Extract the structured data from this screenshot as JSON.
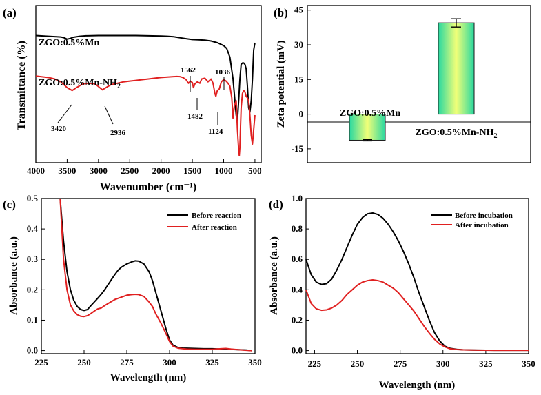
{
  "figure": {
    "colors": {
      "black": "#000000",
      "red": "#e02020",
      "bar_edge": "#1a1a1a"
    }
  },
  "panels": [
    {
      "id": "a",
      "label": "(a)",
      "chart_data": {
        "type": "line",
        "title": "",
        "xlabel": "Wavenumber (cm⁻¹)",
        "ylabel": "Transmittance (%)",
        "xlim": [
          4000,
          400
        ],
        "xticks": [
          "4000",
          "3500",
          "3000",
          "2500",
          "2000",
          "1500",
          "1000",
          "500"
        ],
        "series": [
          {
            "name": "ZGO:0.5%Mn",
            "label": "ZGO:0.5%Mn",
            "color": "#000000",
            "x": [
              4000,
              3800,
              3600,
              3550,
              3500,
              3450,
              3400,
              3300,
              3200,
              3000,
              2800,
              2600,
              2400,
              2200,
              2000,
              1900,
              1800,
              1700,
              1600,
              1500,
              1400,
              1300,
              1200,
              1100,
              1000,
              950,
              900,
              850,
              800,
              780,
              760,
              740,
              720,
              700,
              680,
              660,
              640,
              620,
              600,
              580,
              560,
              540,
              520,
              500
            ],
            "y": [
              0.85,
              0.845,
              0.84,
              0.835,
              0.825,
              0.83,
              0.838,
              0.845,
              0.848,
              0.85,
              0.85,
              0.85,
              0.85,
              0.848,
              0.846,
              0.845,
              0.842,
              0.835,
              0.828,
              0.822,
              0.82,
              0.818,
              0.812,
              0.8,
              0.78,
              0.76,
              0.7,
              0.55,
              0.3,
              0.26,
              0.4,
              0.55,
              0.65,
              0.66,
              0.66,
              0.65,
              0.62,
              0.5,
              0.35,
              0.32,
              0.4,
              0.55,
              0.75,
              0.8
            ]
          },
          {
            "name": "ZGO:0.5%Mn-NH2",
            "label": "ZGO:0.5%Mn-NH",
            "label_sub": "2",
            "color": "#e02020",
            "x": [
              4000,
              3900,
              3800,
              3700,
              3600,
              3500,
              3420,
              3350,
              3250,
              3150,
              3050,
              2980,
              2936,
              2880,
              2800,
              2700,
              2600,
              2500,
              2400,
              2300,
              2200,
              2100,
              2000,
              1900,
              1800,
              1750,
              1700,
              1650,
              1600,
              1562,
              1530,
              1500,
              1482,
              1460,
              1420,
              1380,
              1350,
              1300,
              1250,
              1200,
              1170,
              1140,
              1124,
              1100,
              1070,
              1036,
              1000,
              960,
              930,
              900,
              870,
              850,
              830,
              800,
              780,
              760,
              750,
              740,
              730,
              720,
              700,
              680,
              660,
              640,
              620,
              600,
              580,
              560,
              540,
              520,
              500
            ],
            "y": [
              0.57,
              0.565,
              0.56,
              0.55,
              0.53,
              0.49,
              0.47,
              0.49,
              0.515,
              0.52,
              0.515,
              0.49,
              0.475,
              0.49,
              0.51,
              0.52,
              0.53,
              0.535,
              0.54,
              0.545,
              0.55,
              0.555,
              0.56,
              0.563,
              0.566,
              0.567,
              0.566,
              0.56,
              0.545,
              0.52,
              0.535,
              0.525,
              0.49,
              0.515,
              0.53,
              0.52,
              0.55,
              0.555,
              0.53,
              0.55,
              0.52,
              0.45,
              0.43,
              0.47,
              0.48,
              0.53,
              0.545,
              0.535,
              0.52,
              0.5,
              0.42,
              0.28,
              0.36,
              0.4,
              0.2,
              0.06,
              0.02,
              0.08,
              0.22,
              0.35,
              0.45,
              0.47,
              0.46,
              0.43,
              0.42,
              0.4,
              0.3,
              0.16,
              0.1,
              0.2,
              0.3
            ]
          }
        ],
        "annotations": [
          {
            "text": "3420",
            "x": 3420
          },
          {
            "text": "2936",
            "x": 2936
          },
          {
            "text": "1562",
            "x": 1562
          },
          {
            "text": "1482",
            "x": 1482
          },
          {
            "text": "1124",
            "x": 1124
          },
          {
            "text": "1036",
            "x": 1036
          }
        ]
      }
    },
    {
      "id": "b",
      "label": "(b)",
      "chart_data": {
        "type": "bar",
        "title": "",
        "xlabel": "",
        "ylabel": "Zeta potential (mV)",
        "ylim": [
          -21,
          47
        ],
        "yticks": [
          "-15",
          "0",
          "15",
          "30",
          "45"
        ],
        "categories": [
          "ZGO:0.5%Mn",
          "ZGO:0.5%Mn-NH2"
        ],
        "category_labels": [
          {
            "main": "ZGO:0.5%Mn",
            "sub": ""
          },
          {
            "main": "ZGO:0.5%Mn-NH",
            "sub": "2"
          }
        ],
        "values": [
          -11.3,
          39.5
        ],
        "errors": [
          0.3,
          1.8
        ]
      }
    },
    {
      "id": "c",
      "label": "(c)",
      "chart_data": {
        "type": "line",
        "title": "",
        "xlabel": "Wavelength (nm)",
        "ylabel": "Absorbance (a.u.)",
        "xlim": [
          225,
          350
        ],
        "ylim": [
          -0.01,
          0.5
        ],
        "xticks": [
          "225",
          "250",
          "275",
          "300",
          "325",
          "350"
        ],
        "yticks": [
          "0.0",
          "0.1",
          "0.2",
          "0.3",
          "0.4",
          "0.5"
        ],
        "legend": "top-right",
        "series": [
          {
            "name": "Before reaction",
            "color": "#000000",
            "x": [
              236,
              238,
              240,
              242,
              244,
              246,
              248,
              250,
              252,
              254,
              256,
              258,
              260,
              262,
              265,
              268,
              270,
              272,
              275,
              278,
              280,
              282,
              285,
              288,
              290,
              292,
              295,
              298,
              300,
              302,
              305,
              308,
              310,
              315,
              320,
              325,
              330,
              335,
              340,
              345,
              348
            ],
            "y": [
              0.5,
              0.36,
              0.26,
              0.2,
              0.165,
              0.145,
              0.135,
              0.132,
              0.135,
              0.148,
              0.16,
              0.172,
              0.185,
              0.2,
              0.225,
              0.25,
              0.265,
              0.275,
              0.285,
              0.292,
              0.295,
              0.294,
              0.285,
              0.26,
              0.23,
              0.19,
              0.13,
              0.07,
              0.035,
              0.018,
              0.01,
              0.008,
              0.008,
              0.007,
              0.006,
              0.006,
              0.005,
              0.004,
              0.003,
              0.002,
              0.0
            ]
          },
          {
            "name": "After reaction",
            "color": "#e02020",
            "x": [
              236,
              238,
              240,
              242,
              244,
              246,
              248,
              250,
              252,
              254,
              256,
              258,
              260,
              262,
              265,
              268,
              270,
              272,
              275,
              278,
              280,
              282,
              285,
              288,
              290,
              292,
              295,
              298,
              300,
              302,
              305,
              308,
              310,
              315,
              320,
              325,
              330,
              333,
              336,
              340,
              345,
              348
            ],
            "y": [
              0.5,
              0.3,
              0.2,
              0.15,
              0.13,
              0.118,
              0.113,
              0.112,
              0.115,
              0.122,
              0.13,
              0.137,
              0.14,
              0.148,
              0.158,
              0.168,
              0.172,
              0.176,
              0.182,
              0.184,
              0.185,
              0.184,
              0.178,
              0.16,
              0.145,
              0.12,
              0.09,
              0.055,
              0.03,
              0.015,
              0.008,
              0.006,
              0.005,
              0.004,
              0.004,
              0.004,
              0.006,
              0.007,
              0.005,
              0.003,
              0.001,
              0.0
            ]
          }
        ]
      }
    },
    {
      "id": "d",
      "label": "(d)",
      "chart_data": {
        "type": "line",
        "title": "",
        "xlabel": "Wavelength (nm)",
        "ylabel": "Absorbance (a.u.)",
        "xlim": [
          220,
          350
        ],
        "ylim": [
          -0.02,
          1.0
        ],
        "xticks": [
          "225",
          "250",
          "275",
          "300",
          "325",
          "350"
        ],
        "yticks": [
          "0.0",
          "0.2",
          "0.4",
          "0.6",
          "0.8",
          "1.0"
        ],
        "legend": "top-right",
        "series": [
          {
            "name": "Before incubation",
            "color": "#000000",
            "x": [
              220,
              223,
              226,
              229,
              232,
              235,
              238,
              241,
              244,
              247,
              250,
              253,
              256,
              259,
              262,
              265,
              268,
              271,
              274,
              277,
              280,
              283,
              286,
              289,
              292,
              295,
              298,
              301,
              304,
              308,
              312,
              320,
              330,
              340,
              350
            ],
            "y": [
              0.6,
              0.5,
              0.45,
              0.435,
              0.44,
              0.47,
              0.53,
              0.6,
              0.68,
              0.76,
              0.83,
              0.875,
              0.9,
              0.905,
              0.895,
              0.87,
              0.83,
              0.78,
              0.72,
              0.65,
              0.57,
              0.48,
              0.38,
              0.29,
              0.2,
              0.12,
              0.065,
              0.03,
              0.015,
              0.008,
              0.005,
              0.003,
              0.002,
              0.002,
              0.002
            ]
          },
          {
            "name": "After incubation",
            "color": "#e02020",
            "x": [
              220,
              223,
              226,
              229,
              232,
              235,
              238,
              241,
              244,
              247,
              250,
              253,
              256,
              259,
              262,
              265,
              268,
              271,
              274,
              277,
              280,
              283,
              286,
              289,
              292,
              295,
              298,
              301,
              304,
              308,
              312,
              320,
              330,
              340,
              350
            ],
            "y": [
              0.4,
              0.31,
              0.275,
              0.265,
              0.268,
              0.28,
              0.3,
              0.33,
              0.37,
              0.4,
              0.43,
              0.45,
              0.46,
              0.465,
              0.46,
              0.45,
              0.43,
              0.41,
              0.38,
              0.34,
              0.3,
              0.26,
              0.21,
              0.16,
              0.115,
              0.075,
              0.045,
              0.025,
              0.012,
              0.007,
              0.005,
              0.003,
              0.002,
              0.002,
              0.002
            ]
          }
        ]
      }
    }
  ]
}
